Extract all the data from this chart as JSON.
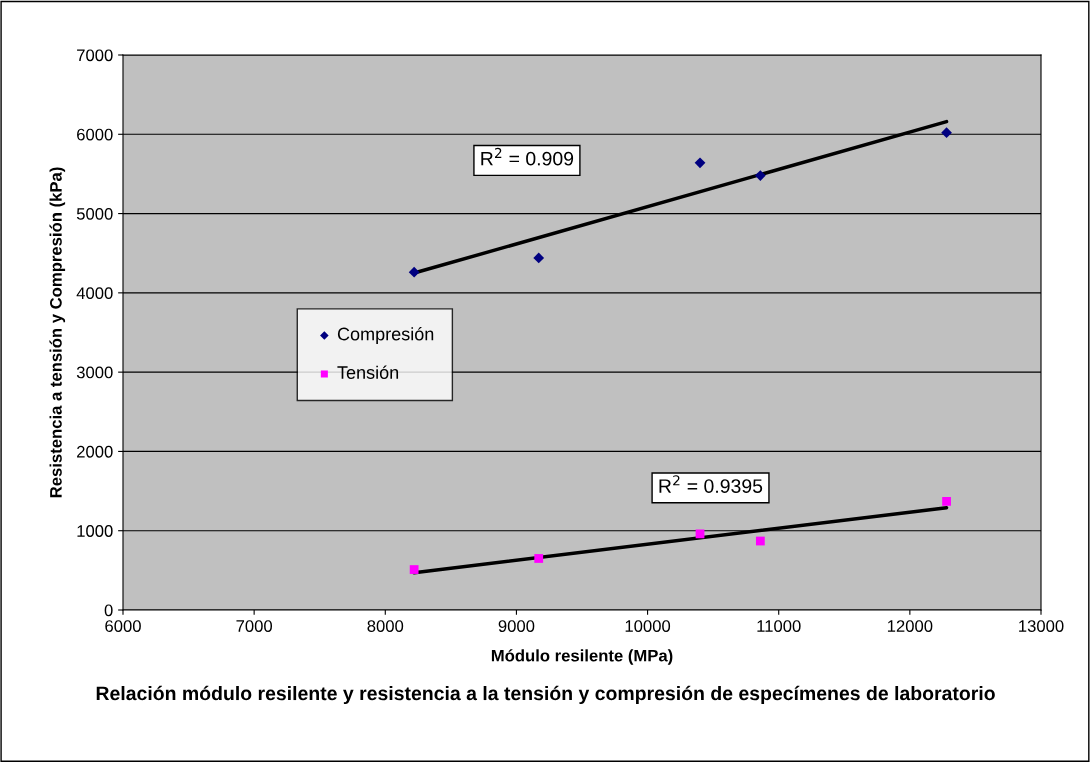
{
  "chart_data": {
    "type": "scatter",
    "title": "Relación módulo resilente y resistencia a la tensión y compresión de especímenes de laboratorio",
    "xlabel": "Módulo resilente (MPa)",
    "ylabel": "Resistencia a tensión y Compresión (kPa)",
    "xlim": [
      6000,
      13000
    ],
    "xticks": [
      6000,
      7000,
      8000,
      9000,
      10000,
      11000,
      12000,
      13000
    ],
    "ylim": [
      0,
      7000
    ],
    "yticks": [
      0,
      1000,
      2000,
      3000,
      4000,
      5000,
      6000,
      7000
    ],
    "grid": "y",
    "legend": "center left",
    "series": [
      {
        "name": "Compresión",
        "color": "#000080",
        "marker": "diamond",
        "x": [
          8220,
          9170,
          10400,
          10860,
          12280
        ],
        "values": [
          4260,
          4440,
          5640,
          5480,
          6020
        ]
      },
      {
        "name": "Tensión",
        "color": "#ff00ff",
        "marker": "square",
        "x": [
          8220,
          9170,
          10400,
          10860,
          12280
        ],
        "values": [
          510,
          650,
          960,
          870,
          1370
        ]
      },
      {
        "type": "line",
        "color": "#000000",
        "marker": "none",
        "line_style": "solid",
        "x": [
          8220,
          12280
        ],
        "values": [
          4250,
          6160
        ]
      },
      {
        "type": "line",
        "color": "#000000",
        "marker": "none",
        "line_style": "solid",
        "x": [
          8220,
          12280
        ],
        "values": [
          470,
          1290
        ]
      }
    ],
    "annotations": [
      "R$^{2}$ = 0.909",
      "R$^{2}$ = 0.9395"
    ]
  }
}
